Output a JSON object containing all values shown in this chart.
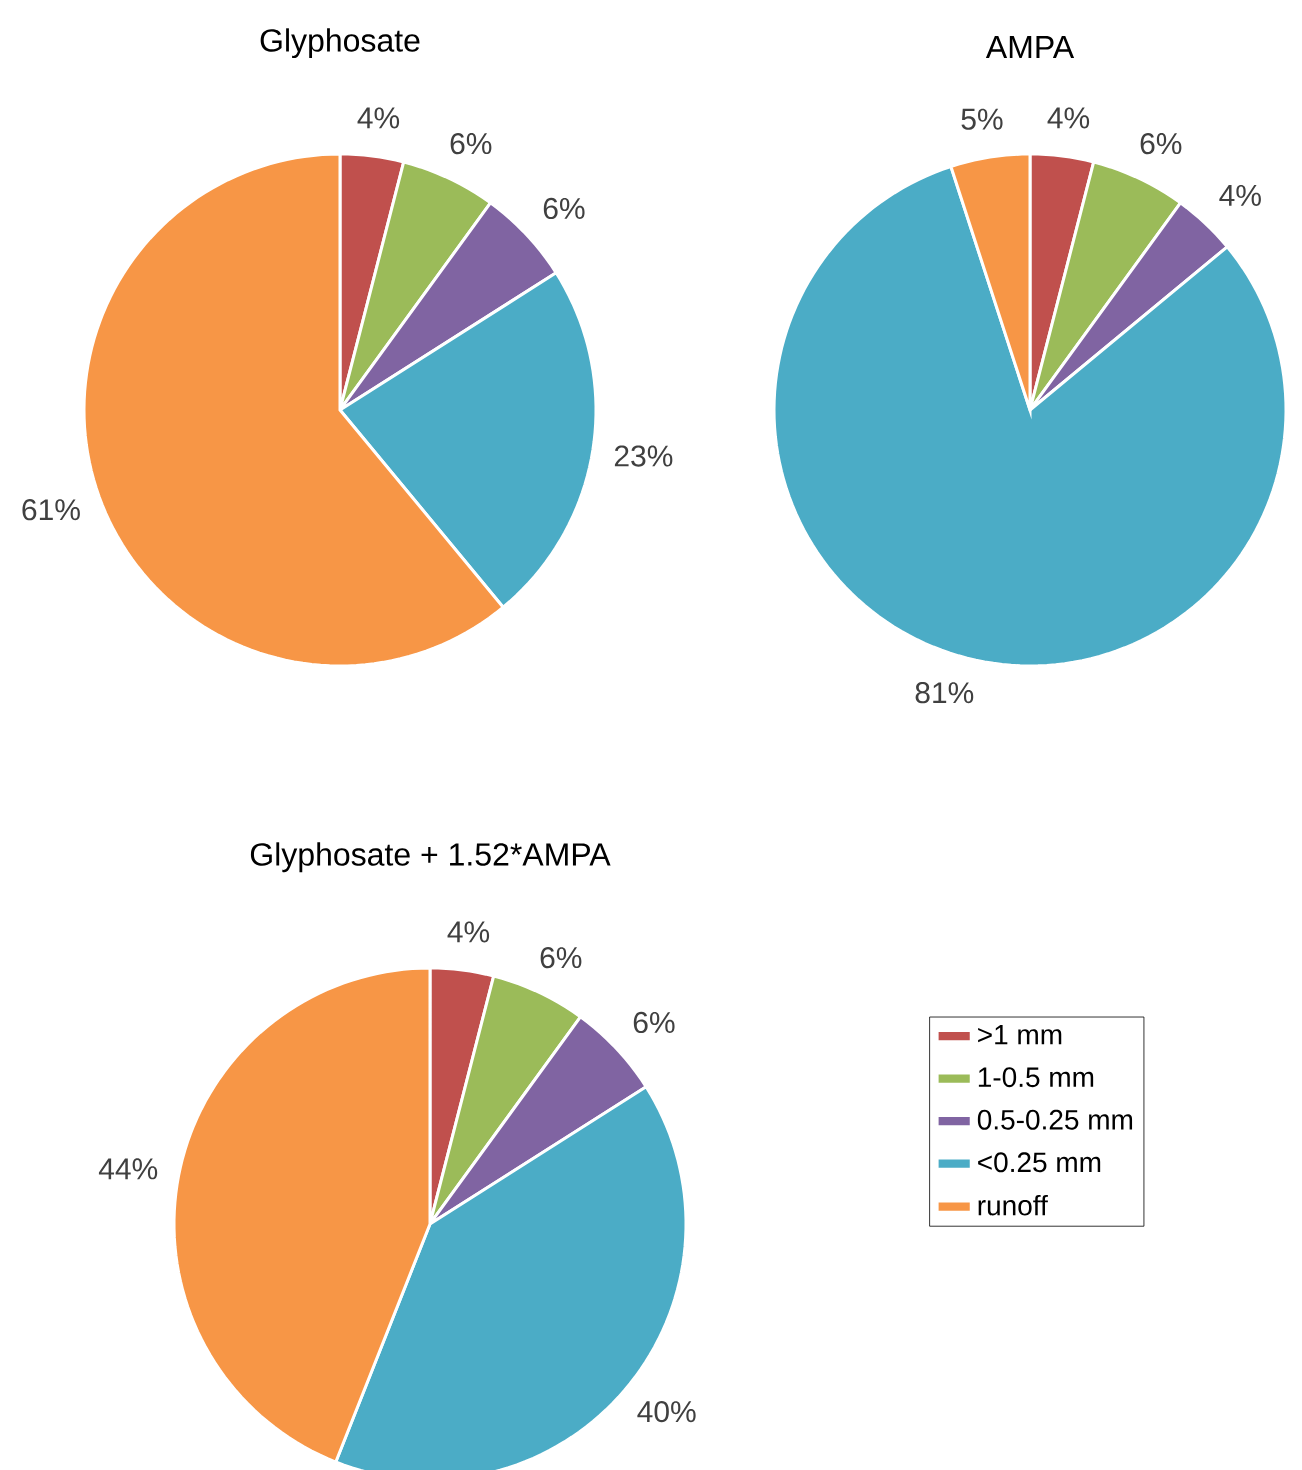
{
  "chart_data": [
    {
      "type": "pie",
      "title": "Glyphosate",
      "categories": [
        null,
        null,
        null,
        null,
        null
      ],
      "values": [
        4,
        6,
        6,
        23,
        61
      ],
      "colors": [
        "#c0504d",
        "#9bbb59",
        "#8064a2",
        "#4bacc6",
        "#f79646"
      ],
      "value_labels": [
        "4%",
        "6%",
        "6%",
        "23%",
        "61%"
      ]
    },
    {
      "type": "pie",
      "title": "AMPA",
      "categories": [
        null,
        null,
        null,
        null,
        null
      ],
      "values": [
        4,
        6,
        4,
        81,
        5
      ],
      "colors": [
        "#c0504d",
        "#9bbb59",
        "#8064a2",
        "#4bacc6",
        "#f79646"
      ],
      "value_labels": [
        "4%",
        "6%",
        "4%",
        "81%",
        "5%"
      ]
    },
    {
      "type": "pie",
      "title": "Glyphosate + 1.52*AMPA",
      "categories": [
        ">1 mm",
        "1-0.5 mm",
        "0.5-0.25 mm",
        "<0.25 mm",
        "runoff"
      ],
      "values": [
        4,
        6,
        6,
        40,
        44
      ],
      "colors": [
        "#c0504d",
        "#9bbb59",
        "#8064a2",
        "#4bacc6",
        "#f79646"
      ],
      "value_labels": [
        "4%",
        "6%",
        "6%",
        "40%",
        "44%"
      ],
      "legend": "right"
    }
  ]
}
